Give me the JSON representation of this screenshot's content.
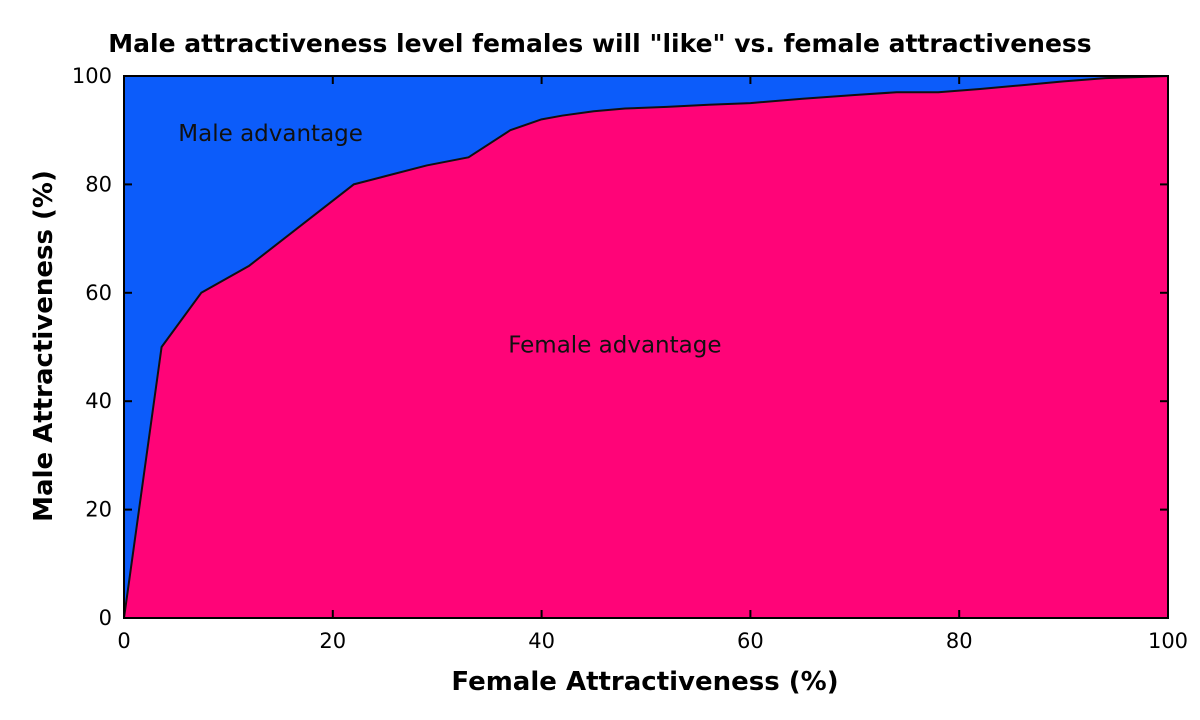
{
  "chart_data": {
    "type": "area",
    "title": "Male attractiveness level females will \"like\" vs. female attractiveness",
    "xlabel": "Female Attractiveness (%)",
    "ylabel": "Male Attractiveness (%)",
    "xlim": [
      0,
      100
    ],
    "ylim": [
      0,
      100
    ],
    "xticks": [
      0,
      20,
      40,
      60,
      80,
      100
    ],
    "yticks": [
      0,
      20,
      40,
      60,
      80,
      100
    ],
    "grid": false,
    "series": [
      {
        "x": [
          0,
          3.6,
          7.4,
          12,
          22,
          25,
          29,
          33,
          37,
          40,
          42,
          45,
          48,
          52,
          56,
          60,
          65,
          70,
          74,
          78,
          82,
          86,
          90,
          94,
          97,
          100
        ],
        "y": [
          0,
          50,
          60,
          65,
          80,
          81.5,
          83.5,
          85,
          90,
          92,
          92.7,
          93.5,
          94,
          94.3,
          94.7,
          95,
          95.8,
          96.5,
          97,
          97,
          97.6,
          98.3,
          99,
          99.6,
          99.8,
          100
        ]
      }
    ],
    "annotations": [
      {
        "text": "Male advantage",
        "x": 5.2,
        "y": 88
      },
      {
        "text": "Female advantage",
        "x": 36.8,
        "y": 49
      }
    ],
    "colors": {
      "above_curve": "#0c5cfa",
      "below_curve": "#ff0478",
      "curve": "#111111",
      "axes": "#000000"
    }
  }
}
